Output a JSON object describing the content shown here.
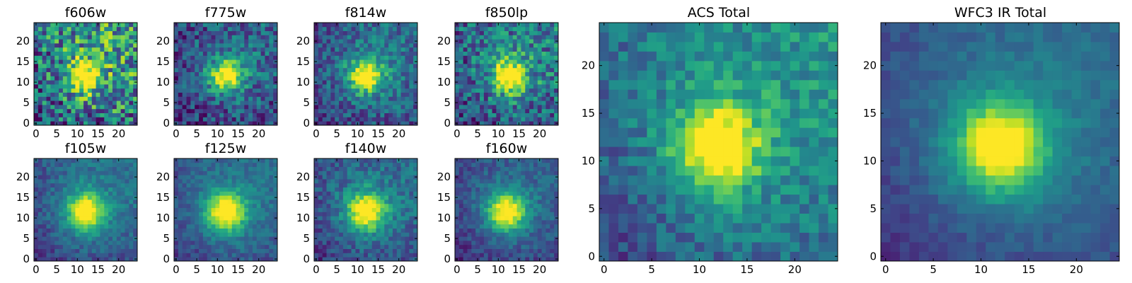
{
  "chart_data": [
    {
      "type": "heatmap",
      "title": "f606w",
      "grid": false,
      "xlim": [
        -0.5,
        24.5
      ],
      "ylim": [
        -0.5,
        24.5
      ],
      "x_ticks": [
        0,
        5,
        10,
        15,
        20
      ],
      "y_ticks": [
        0,
        5,
        10,
        15,
        20
      ],
      "peak": [
        12,
        11.5
      ],
      "core_sigma": 2.2,
      "halo_sigma": 6.0,
      "noise": 0.75,
      "background": 0.22,
      "gradient": 0.35,
      "value_range": [
        0,
        1
      ],
      "colormap": "viridis"
    },
    {
      "type": "heatmap",
      "title": "f775w",
      "grid": false,
      "xlim": [
        -0.5,
        24.5
      ],
      "ylim": [
        -0.5,
        24.5
      ],
      "x_ticks": [
        0,
        5,
        10,
        15,
        20
      ],
      "y_ticks": [
        0,
        5,
        10,
        15,
        20
      ],
      "peak": [
        12,
        11.5
      ],
      "core_sigma": 2.4,
      "halo_sigma": 6.0,
      "noise": 0.45,
      "background": 0.12,
      "gradient": 0.2,
      "value_range": [
        0,
        1
      ],
      "colormap": "viridis"
    },
    {
      "type": "heatmap",
      "title": "f814w",
      "grid": false,
      "xlim": [
        -0.5,
        24.5
      ],
      "ylim": [
        -0.5,
        24.5
      ],
      "x_ticks": [
        0,
        5,
        10,
        15,
        20
      ],
      "y_ticks": [
        0,
        5,
        10,
        15,
        20
      ],
      "peak": [
        12,
        11.5
      ],
      "core_sigma": 2.5,
      "halo_sigma": 6.5,
      "noise": 0.38,
      "background": 0.14,
      "gradient": 0.22,
      "value_range": [
        0,
        1
      ],
      "colormap": "viridis"
    },
    {
      "type": "heatmap",
      "title": "f850lp",
      "grid": false,
      "xlim": [
        -0.5,
        24.5
      ],
      "ylim": [
        -0.5,
        24.5
      ],
      "x_ticks": [
        0,
        5,
        10,
        15,
        20
      ],
      "y_ticks": [
        0,
        5,
        10,
        15,
        20
      ],
      "peak": [
        12.5,
        11.5
      ],
      "core_sigma": 2.5,
      "halo_sigma": 6.0,
      "noise": 0.55,
      "background": 0.18,
      "gradient": 0.25,
      "value_range": [
        0,
        1
      ],
      "colormap": "viridis"
    },
    {
      "type": "heatmap",
      "title": "f105w",
      "grid": false,
      "xlim": [
        -0.5,
        24.5
      ],
      "ylim": [
        -0.5,
        24.5
      ],
      "x_ticks": [
        0,
        5,
        10,
        15,
        20
      ],
      "y_ticks": [
        0,
        5,
        10,
        15,
        20
      ],
      "peak": [
        12,
        11.5
      ],
      "core_sigma": 2.8,
      "halo_sigma": 7.0,
      "noise": 0.22,
      "background": 0.14,
      "gradient": 0.22,
      "value_range": [
        0,
        1
      ],
      "colormap": "viridis"
    },
    {
      "type": "heatmap",
      "title": "f125w",
      "grid": false,
      "xlim": [
        -0.5,
        24.5
      ],
      "ylim": [
        -0.5,
        24.5
      ],
      "x_ticks": [
        0,
        5,
        10,
        15,
        20
      ],
      "y_ticks": [
        0,
        5,
        10,
        15,
        20
      ],
      "peak": [
        12,
        11.5
      ],
      "core_sigma": 3.0,
      "halo_sigma": 7.5,
      "noise": 0.2,
      "background": 0.14,
      "gradient": 0.2,
      "value_range": [
        0,
        1
      ],
      "colormap": "viridis"
    },
    {
      "type": "heatmap",
      "title": "f140w",
      "grid": false,
      "xlim": [
        -0.5,
        24.5
      ],
      "ylim": [
        -0.5,
        24.5
      ],
      "x_ticks": [
        0,
        5,
        10,
        15,
        20
      ],
      "y_ticks": [
        0,
        5,
        10,
        15,
        20
      ],
      "peak": [
        12,
        11.5
      ],
      "core_sigma": 3.0,
      "halo_sigma": 7.5,
      "noise": 0.28,
      "background": 0.13,
      "gradient": 0.2,
      "value_range": [
        0,
        1
      ],
      "colormap": "viridis"
    },
    {
      "type": "heatmap",
      "title": "f160w",
      "grid": false,
      "xlim": [
        -0.5,
        24.5
      ],
      "ylim": [
        -0.5,
        24.5
      ],
      "x_ticks": [
        0,
        5,
        10,
        15,
        20
      ],
      "y_ticks": [
        0,
        5,
        10,
        15,
        20
      ],
      "peak": [
        12,
        11.5
      ],
      "core_sigma": 3.0,
      "halo_sigma": 7.5,
      "noise": 0.22,
      "background": 0.1,
      "gradient": 0.18,
      "value_range": [
        0,
        1
      ],
      "colormap": "viridis"
    },
    {
      "type": "heatmap",
      "title": "ACS Total",
      "grid": false,
      "xlim": [
        -0.5,
        24.5
      ],
      "ylim": [
        -0.5,
        24.5
      ],
      "x_ticks": [
        0,
        5,
        10,
        15,
        20
      ],
      "y_ticks": [
        0,
        5,
        10,
        15,
        20
      ],
      "peak": [
        12,
        11.5
      ],
      "core_sigma": 2.6,
      "halo_sigma": 6.5,
      "noise": 0.3,
      "background": 0.2,
      "gradient": 0.32,
      "value_range": [
        0,
        1
      ],
      "colormap": "viridis"
    },
    {
      "type": "heatmap",
      "title": "WFC3 IR Total",
      "grid": false,
      "xlim": [
        -0.5,
        24.5
      ],
      "ylim": [
        -0.5,
        24.5
      ],
      "x_ticks": [
        0,
        5,
        10,
        15,
        20
      ],
      "y_ticks": [
        0,
        5,
        10,
        15,
        20
      ],
      "peak": [
        12,
        11.5
      ],
      "core_sigma": 3.0,
      "halo_sigma": 7.5,
      "noise": 0.12,
      "background": 0.12,
      "gradient": 0.22,
      "value_range": [
        0,
        1
      ],
      "colormap": "viridis"
    }
  ]
}
